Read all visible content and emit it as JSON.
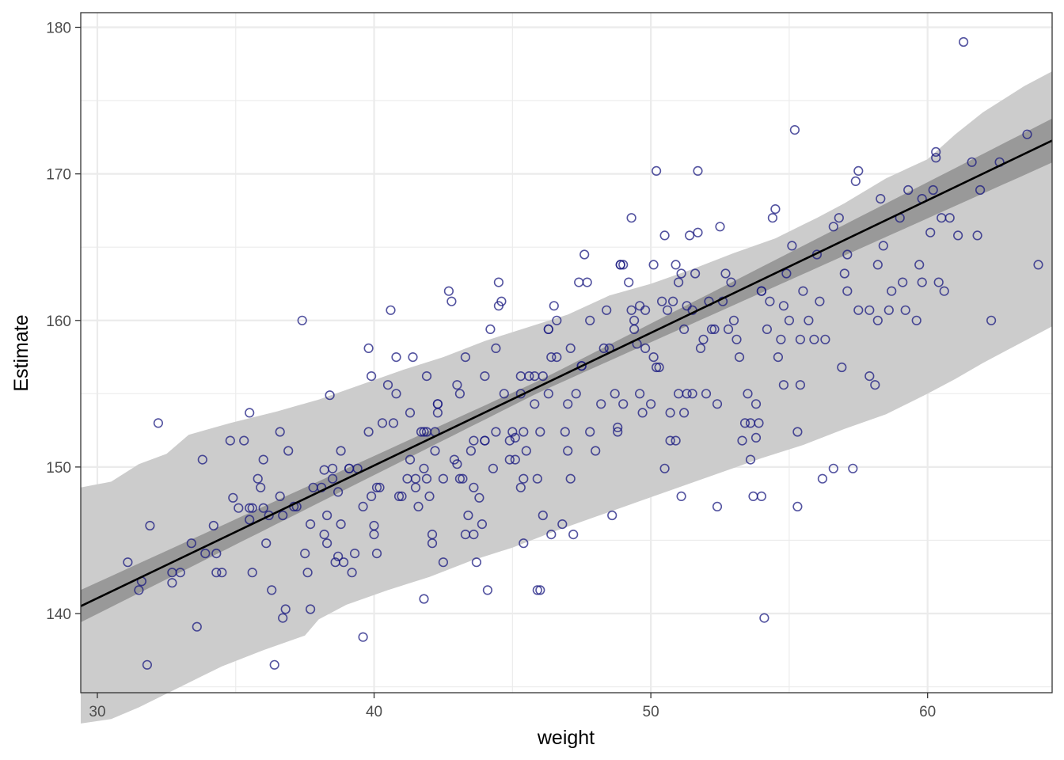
{
  "chart_data": {
    "type": "scatter",
    "title": "",
    "xlabel": "weight",
    "ylabel": "Estimate",
    "xlim": [
      29.4,
      64.5
    ],
    "ylim": [
      134.6,
      181.0
    ],
    "x_ticks": [
      30,
      40,
      50,
      60
    ],
    "y_ticks": [
      140,
      150,
      160,
      170,
      180
    ],
    "x_tick_labels": [
      "30",
      "40",
      "50",
      "60"
    ],
    "y_tick_labels": [
      "140",
      "150",
      "160",
      "170",
      "180"
    ],
    "grid": true,
    "legend": "none",
    "colors": {
      "points": "#1a1a80",
      "fit_line": "#000000",
      "prediction_band": "#cccccc",
      "mean_band": "#999999",
      "grid": "#ebebeb",
      "panel_border": "#333333"
    },
    "fit_line": {
      "intercept": 113.9,
      "slope": 0.905
    },
    "mean_band_halfwidth": [
      [
        29.4,
        1.1
      ],
      [
        46,
        0.4
      ],
      [
        64.5,
        1.5
      ]
    ],
    "prediction_band": {
      "upper": [
        [
          29.4,
          148.6
        ],
        [
          30.5,
          149.0
        ],
        [
          31.5,
          150.2
        ],
        [
          32.5,
          150.9
        ],
        [
          33.3,
          152.2
        ],
        [
          34.8,
          153.0
        ],
        [
          36.5,
          153.8
        ],
        [
          38.0,
          154.6
        ],
        [
          39.5,
          155.6
        ],
        [
          41.0,
          156.6
        ],
        [
          42.5,
          157.5
        ],
        [
          44.0,
          158.6
        ],
        [
          45.5,
          159.5
        ],
        [
          47.0,
          160.4
        ],
        [
          48.5,
          161.7
        ],
        [
          50.0,
          162.5
        ],
        [
          51.5,
          163.5
        ],
        [
          53.0,
          164.6
        ],
        [
          54.5,
          165.6
        ],
        [
          56.0,
          167.0
        ],
        [
          57.0,
          168.0
        ],
        [
          58.5,
          169.7
        ],
        [
          60.0,
          171.0
        ],
        [
          61.0,
          172.7
        ],
        [
          62.0,
          174.2
        ],
        [
          63.5,
          176.0
        ],
        [
          64.5,
          177.0
        ]
      ],
      "lower": [
        [
          29.4,
          132.5
        ],
        [
          30.5,
          132.8
        ],
        [
          31.5,
          133.6
        ],
        [
          33.0,
          135.0
        ],
        [
          34.5,
          136.4
        ],
        [
          36.0,
          137.5
        ],
        [
          37.5,
          138.5
        ],
        [
          38.0,
          139.6
        ],
        [
          39.0,
          140.6
        ],
        [
          40.5,
          141.6
        ],
        [
          42.0,
          142.5
        ],
        [
          43.5,
          143.6
        ],
        [
          45.0,
          144.5
        ],
        [
          46.5,
          145.6
        ],
        [
          48.0,
          146.6
        ],
        [
          49.5,
          147.6
        ],
        [
          51.0,
          148.6
        ],
        [
          52.5,
          149.6
        ],
        [
          54.0,
          150.6
        ],
        [
          55.5,
          151.5
        ],
        [
          57.0,
          152.6
        ],
        [
          58.5,
          153.6
        ],
        [
          60.0,
          155.0
        ],
        [
          61.0,
          156.0
        ],
        [
          62.0,
          157.1
        ],
        [
          63.5,
          158.6
        ],
        [
          64.5,
          159.6
        ]
      ]
    },
    "points": [
      [
        31.1,
        143.5
      ],
      [
        31.6,
        142.2
      ],
      [
        31.5,
        141.6
      ],
      [
        31.8,
        136.5
      ],
      [
        31.9,
        146.0
      ],
      [
        32.2,
        153.0
      ],
      [
        32.7,
        142.8
      ],
      [
        32.7,
        142.1
      ],
      [
        33.0,
        142.8
      ],
      [
        33.4,
        144.8
      ],
      [
        33.6,
        139.1
      ],
      [
        33.8,
        150.5
      ],
      [
        33.9,
        144.1
      ],
      [
        34.2,
        146.0
      ],
      [
        34.3,
        144.1
      ],
      [
        34.3,
        142.8
      ],
      [
        34.5,
        142.8
      ],
      [
        34.8,
        151.8
      ],
      [
        34.9,
        147.9
      ],
      [
        35.1,
        147.2
      ],
      [
        35.3,
        151.8
      ],
      [
        35.5,
        146.4
      ],
      [
        35.5,
        147.2
      ],
      [
        35.5,
        153.7
      ],
      [
        35.6,
        142.8
      ],
      [
        35.6,
        147.2
      ],
      [
        35.8,
        149.2
      ],
      [
        35.9,
        148.6
      ],
      [
        36.0,
        150.5
      ],
      [
        36.0,
        147.2
      ],
      [
        36.1,
        144.8
      ],
      [
        36.2,
        146.7
      ],
      [
        36.3,
        141.6
      ],
      [
        36.4,
        136.5
      ],
      [
        36.6,
        148.0
      ],
      [
        36.6,
        152.4
      ],
      [
        36.7,
        139.7
      ],
      [
        36.7,
        146.7
      ],
      [
        36.8,
        140.3
      ],
      [
        36.9,
        151.1
      ],
      [
        37.1,
        147.3
      ],
      [
        37.2,
        147.3
      ],
      [
        37.4,
        160.0
      ],
      [
        37.5,
        144.1
      ],
      [
        37.6,
        142.8
      ],
      [
        37.7,
        140.3
      ],
      [
        37.7,
        146.1
      ],
      [
        37.8,
        148.6
      ],
      [
        38.1,
        148.6
      ],
      [
        38.2,
        149.8
      ],
      [
        38.2,
        145.4
      ],
      [
        38.3,
        144.8
      ],
      [
        38.3,
        146.7
      ],
      [
        38.4,
        154.9
      ],
      [
        38.5,
        149.9
      ],
      [
        38.5,
        149.2
      ],
      [
        38.6,
        143.5
      ],
      [
        38.7,
        148.3
      ],
      [
        38.7,
        143.9
      ],
      [
        38.8,
        146.1
      ],
      [
        38.8,
        151.1
      ],
      [
        38.9,
        143.5
      ],
      [
        39.1,
        149.9
      ],
      [
        39.1,
        149.9
      ],
      [
        39.2,
        142.8
      ],
      [
        39.3,
        144.1
      ],
      [
        39.4,
        149.9
      ],
      [
        39.6,
        147.3
      ],
      [
        39.6,
        138.4
      ],
      [
        39.8,
        158.1
      ],
      [
        39.8,
        152.4
      ],
      [
        39.9,
        156.2
      ],
      [
        39.9,
        148.0
      ],
      [
        40.0,
        145.4
      ],
      [
        40.0,
        146.0
      ],
      [
        40.1,
        144.1
      ],
      [
        40.1,
        148.6
      ],
      [
        40.2,
        148.6
      ],
      [
        40.3,
        153.0
      ],
      [
        40.5,
        155.6
      ],
      [
        40.6,
        160.7
      ],
      [
        40.7,
        153.0
      ],
      [
        40.8,
        155.0
      ],
      [
        40.8,
        157.5
      ],
      [
        40.9,
        148.0
      ],
      [
        41.0,
        148.0
      ],
      [
        41.2,
        149.2
      ],
      [
        41.3,
        150.5
      ],
      [
        41.3,
        153.7
      ],
      [
        41.4,
        157.5
      ],
      [
        41.5,
        148.6
      ],
      [
        41.5,
        149.2
      ],
      [
        41.6,
        147.3
      ],
      [
        41.7,
        152.4
      ],
      [
        41.8,
        152.4
      ],
      [
        41.8,
        149.9
      ],
      [
        41.8,
        141.0
      ],
      [
        41.9,
        156.2
      ],
      [
        41.9,
        149.2
      ],
      [
        41.9,
        152.4
      ],
      [
        42.0,
        148.0
      ],
      [
        42.1,
        144.8
      ],
      [
        42.1,
        145.4
      ],
      [
        42.2,
        151.1
      ],
      [
        42.2,
        152.4
      ],
      [
        42.3,
        154.3
      ],
      [
        42.3,
        154.3
      ],
      [
        42.3,
        153.7
      ],
      [
        42.5,
        149.2
      ],
      [
        42.5,
        143.5
      ],
      [
        42.7,
        162.0
      ],
      [
        42.8,
        161.3
      ],
      [
        42.9,
        150.5
      ],
      [
        43.0,
        150.2
      ],
      [
        43.0,
        155.6
      ],
      [
        43.1,
        149.2
      ],
      [
        43.1,
        155.0
      ],
      [
        43.2,
        149.2
      ],
      [
        43.3,
        145.4
      ],
      [
        43.3,
        157.5
      ],
      [
        43.4,
        146.7
      ],
      [
        43.5,
        151.1
      ],
      [
        43.6,
        145.4
      ],
      [
        43.6,
        148.6
      ],
      [
        43.6,
        151.8
      ],
      [
        43.7,
        143.5
      ],
      [
        43.8,
        147.9
      ],
      [
        43.9,
        146.1
      ],
      [
        44.0,
        156.2
      ],
      [
        44.0,
        151.8
      ],
      [
        44.0,
        151.8
      ],
      [
        44.1,
        141.6
      ],
      [
        44.2,
        159.4
      ],
      [
        44.3,
        149.9
      ],
      [
        44.4,
        152.4
      ],
      [
        44.4,
        158.1
      ],
      [
        44.5,
        162.6
      ],
      [
        44.5,
        161.0
      ],
      [
        44.6,
        161.3
      ],
      [
        44.7,
        155.0
      ],
      [
        44.9,
        151.8
      ],
      [
        44.9,
        150.5
      ],
      [
        45.0,
        152.4
      ],
      [
        45.1,
        150.5
      ],
      [
        45.1,
        152.0
      ],
      [
        45.3,
        156.2
      ],
      [
        45.3,
        155.0
      ],
      [
        45.3,
        148.6
      ],
      [
        45.4,
        149.2
      ],
      [
        45.4,
        144.8
      ],
      [
        45.4,
        152.4
      ],
      [
        45.5,
        151.1
      ],
      [
        45.6,
        156.2
      ],
      [
        45.8,
        154.3
      ],
      [
        45.8,
        156.2
      ],
      [
        45.9,
        149.2
      ],
      [
        45.9,
        141.6
      ],
      [
        46.0,
        152.4
      ],
      [
        46.0,
        141.6
      ],
      [
        46.1,
        146.7
      ],
      [
        46.1,
        156.2
      ],
      [
        46.3,
        159.4
      ],
      [
        46.3,
        159.4
      ],
      [
        46.3,
        155.0
      ],
      [
        46.4,
        145.4
      ],
      [
        46.4,
        157.5
      ],
      [
        46.5,
        161.0
      ],
      [
        46.6,
        160.0
      ],
      [
        46.6,
        157.5
      ],
      [
        46.8,
        146.1
      ],
      [
        46.9,
        152.4
      ],
      [
        47.0,
        151.1
      ],
      [
        47.0,
        154.3
      ],
      [
        47.1,
        158.1
      ],
      [
        47.1,
        149.2
      ],
      [
        47.2,
        145.4
      ],
      [
        47.3,
        155.0
      ],
      [
        47.4,
        162.6
      ],
      [
        47.5,
        156.9
      ],
      [
        47.5,
        156.9
      ],
      [
        47.6,
        164.5
      ],
      [
        47.7,
        162.6
      ],
      [
        47.8,
        152.4
      ],
      [
        47.8,
        160.0
      ],
      [
        48.0,
        151.1
      ],
      [
        48.2,
        154.3
      ],
      [
        48.3,
        158.1
      ],
      [
        48.4,
        160.7
      ],
      [
        48.5,
        158.1
      ],
      [
        48.6,
        146.7
      ],
      [
        48.7,
        155.0
      ],
      [
        48.8,
        152.7
      ],
      [
        48.8,
        152.4
      ],
      [
        48.9,
        163.8
      ],
      [
        48.9,
        163.8
      ],
      [
        49.0,
        163.8
      ],
      [
        49.0,
        154.3
      ],
      [
        49.2,
        162.6
      ],
      [
        49.3,
        167.0
      ],
      [
        49.3,
        160.7
      ],
      [
        49.4,
        160.0
      ],
      [
        49.4,
        159.4
      ],
      [
        49.5,
        158.4
      ],
      [
        49.6,
        155.0
      ],
      [
        49.6,
        161.0
      ],
      [
        49.7,
        153.7
      ],
      [
        49.8,
        160.7
      ],
      [
        49.8,
        158.1
      ],
      [
        50.0,
        154.3
      ],
      [
        50.1,
        163.8
      ],
      [
        50.1,
        157.5
      ],
      [
        50.2,
        156.8
      ],
      [
        50.2,
        170.2
      ],
      [
        50.3,
        156.8
      ],
      [
        50.4,
        161.3
      ],
      [
        50.5,
        165.8
      ],
      [
        50.5,
        149.9
      ],
      [
        50.6,
        160.7
      ],
      [
        50.7,
        153.7
      ],
      [
        50.7,
        151.8
      ],
      [
        50.8,
        161.3
      ],
      [
        50.9,
        151.8
      ],
      [
        50.9,
        163.8
      ],
      [
        51.0,
        155.0
      ],
      [
        51.0,
        162.6
      ],
      [
        51.1,
        148.0
      ],
      [
        51.1,
        163.2
      ],
      [
        51.2,
        159.4
      ],
      [
        51.2,
        153.7
      ],
      [
        51.3,
        155.0
      ],
      [
        51.3,
        161.0
      ],
      [
        51.4,
        165.8
      ],
      [
        51.5,
        160.7
      ],
      [
        51.5,
        155.0
      ],
      [
        51.6,
        163.2
      ],
      [
        51.7,
        170.2
      ],
      [
        51.7,
        166.0
      ],
      [
        51.8,
        158.1
      ],
      [
        51.9,
        158.7
      ],
      [
        52.0,
        155.0
      ],
      [
        52.1,
        161.3
      ],
      [
        52.2,
        159.4
      ],
      [
        52.3,
        159.4
      ],
      [
        52.4,
        147.3
      ],
      [
        52.4,
        154.3
      ],
      [
        52.5,
        166.4
      ],
      [
        52.6,
        161.3
      ],
      [
        52.7,
        163.2
      ],
      [
        52.8,
        159.4
      ],
      [
        52.9,
        162.6
      ],
      [
        53.0,
        160.0
      ],
      [
        53.1,
        158.7
      ],
      [
        53.2,
        157.5
      ],
      [
        53.3,
        151.8
      ],
      [
        53.4,
        153.0
      ],
      [
        53.5,
        155.0
      ],
      [
        53.6,
        153.0
      ],
      [
        53.6,
        150.5
      ],
      [
        53.7,
        148.0
      ],
      [
        53.8,
        152.0
      ],
      [
        53.8,
        154.3
      ],
      [
        53.9,
        153.0
      ],
      [
        54.0,
        148.0
      ],
      [
        54.0,
        162.0
      ],
      [
        54.0,
        162.0
      ],
      [
        54.1,
        139.7
      ],
      [
        54.2,
        159.4
      ],
      [
        54.3,
        161.3
      ],
      [
        54.4,
        167.0
      ],
      [
        54.5,
        167.6
      ],
      [
        54.6,
        157.5
      ],
      [
        54.7,
        158.7
      ],
      [
        54.8,
        155.6
      ],
      [
        54.8,
        161.0
      ],
      [
        54.9,
        163.2
      ],
      [
        55.0,
        160.0
      ],
      [
        55.1,
        165.1
      ],
      [
        55.2,
        173.0
      ],
      [
        55.3,
        152.4
      ],
      [
        55.3,
        147.3
      ],
      [
        55.4,
        158.7
      ],
      [
        55.4,
        155.6
      ],
      [
        55.5,
        162.0
      ],
      [
        55.7,
        160.0
      ],
      [
        55.9,
        158.7
      ],
      [
        56.0,
        164.5
      ],
      [
        56.1,
        161.3
      ],
      [
        56.2,
        149.2
      ],
      [
        56.3,
        158.7
      ],
      [
        56.6,
        149.9
      ],
      [
        56.6,
        166.4
      ],
      [
        56.8,
        167.0
      ],
      [
        56.9,
        156.8
      ],
      [
        57.0,
        163.2
      ],
      [
        57.1,
        164.5
      ],
      [
        57.1,
        162.0
      ],
      [
        57.3,
        149.9
      ],
      [
        57.4,
        169.5
      ],
      [
        57.5,
        170.2
      ],
      [
        57.5,
        160.7
      ],
      [
        57.9,
        156.2
      ],
      [
        57.9,
        160.7
      ],
      [
        58.1,
        155.6
      ],
      [
        58.2,
        160.0
      ],
      [
        58.2,
        163.8
      ],
      [
        58.3,
        168.3
      ],
      [
        58.4,
        165.1
      ],
      [
        58.6,
        160.7
      ],
      [
        58.7,
        162.0
      ],
      [
        59.0,
        167.0
      ],
      [
        59.1,
        162.6
      ],
      [
        59.2,
        160.7
      ],
      [
        59.3,
        168.9
      ],
      [
        59.6,
        160.0
      ],
      [
        59.7,
        163.8
      ],
      [
        59.8,
        168.3
      ],
      [
        59.8,
        162.6
      ],
      [
        60.1,
        166.0
      ],
      [
        60.2,
        168.9
      ],
      [
        60.3,
        171.5
      ],
      [
        60.3,
        171.1
      ],
      [
        60.4,
        162.6
      ],
      [
        60.5,
        167.0
      ],
      [
        60.6,
        162.0
      ],
      [
        60.8,
        167.0
      ],
      [
        61.1,
        165.8
      ],
      [
        61.3,
        179.0
      ],
      [
        61.6,
        170.8
      ],
      [
        61.8,
        165.8
      ],
      [
        61.9,
        168.9
      ],
      [
        62.3,
        160.0
      ],
      [
        62.6,
        170.8
      ],
      [
        63.6,
        172.7
      ],
      [
        64.0,
        163.8
      ]
    ]
  }
}
